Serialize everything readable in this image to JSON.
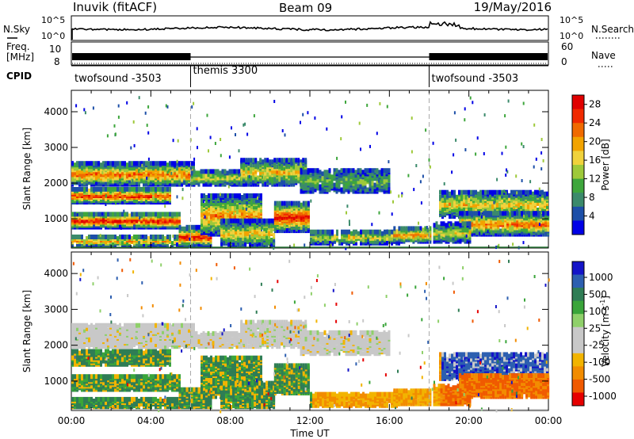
{
  "header": {
    "station": "Inuvik (fitACF)",
    "beam": "Beam 09",
    "date": "19/May/2016"
  },
  "colors": {
    "power_scale": [
      "#0000e6",
      "#1d4fa8",
      "#3b8a6b",
      "#3ea63c",
      "#9ec93a",
      "#f0d23c",
      "#f2a300",
      "#f06a00",
      "#f02a00",
      "#e00000"
    ],
    "velocity_scale": [
      "#1414c8",
      "#2d5fb0",
      "#2f7d55",
      "#3aa53a",
      "#8fd06a",
      "#c8c8c8",
      "#c8c8c8",
      "#f2b400",
      "#f28c00",
      "#f05a00",
      "#e60000"
    ]
  },
  "chart_data": [
    {
      "type": "line",
      "name": "nsky-nsearch-panel",
      "left_label": "N.Sky",
      "right_label": "N.Search",
      "y_ticks_left": [
        "10^5",
        "10^0"
      ],
      "y_ticks_right": [
        "10^5",
        "10^0"
      ]
    },
    {
      "type": "line",
      "name": "freq-nave-panel",
      "left_label_line1": "Freq.",
      "left_label_line2": "[MHz]",
      "right_label": "Nave",
      "y_ticks_left": [
        "10",
        "8"
      ],
      "y_ticks_right": [
        "60",
        "0"
      ]
    },
    {
      "type": "table",
      "name": "cpid-panel",
      "label": "CPID",
      "segments": [
        {
          "start_hour": 0,
          "end_hour": 6,
          "label": "twofsound -3503"
        },
        {
          "start_hour": 6,
          "end_hour": 18,
          "label": "themis 3300"
        },
        {
          "start_hour": 18,
          "end_hour": 24,
          "label": "twofsound -3503"
        }
      ]
    },
    {
      "type": "heatmap",
      "name": "power-panel",
      "ylabel": "Slant Range [km]",
      "y_ticks": [
        1000,
        2000,
        3000,
        4000
      ],
      "ylim": [
        180,
        4600
      ],
      "xlim": [
        0,
        24
      ],
      "colorbar_label": "Power [dB]",
      "colorbar_ticks": [
        "4",
        "8",
        "12",
        "16",
        "20",
        "24",
        "28"
      ],
      "colorbar_range": [
        0,
        30
      ]
    },
    {
      "type": "heatmap",
      "name": "velocity-panel",
      "ylabel": "Slant Range [km]",
      "y_ticks": [
        1000,
        2000,
        3000,
        4000
      ],
      "ylim": [
        180,
        4600
      ],
      "xlim": [
        0,
        24
      ],
      "colorbar_label": "Velocity [m s",
      "colorbar_label_sup": "-1",
      "colorbar_label_end": "]",
      "colorbar_ticks": [
        "1000",
        "500",
        "100",
        "25",
        "-25",
        "-100",
        "-500",
        "-1000"
      ]
    }
  ],
  "x_axis": {
    "label": "Time UT",
    "ticks": [
      "00:00",
      "04:00",
      "08:00",
      "12:00",
      "16:00",
      "20:00",
      "00:00"
    ]
  }
}
